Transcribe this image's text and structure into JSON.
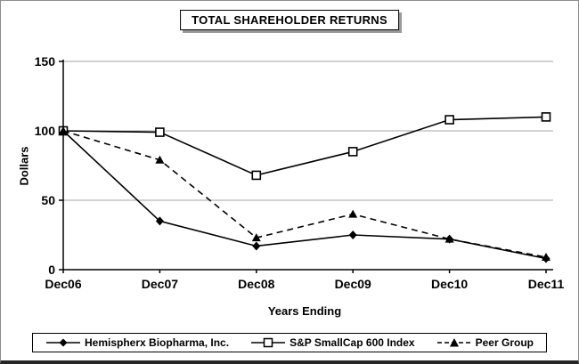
{
  "title": "TOTAL SHAREHOLDER RETURNS",
  "chart_data": {
    "type": "line",
    "categories": [
      "Dec06",
      "Dec07",
      "Dec08",
      "Dec09",
      "Dec10",
      "Dec11"
    ],
    "series": [
      {
        "name": "Hemispherx Biopharma, Inc.",
        "values": [
          100,
          35,
          17,
          25,
          22,
          8
        ],
        "marker": "diamond",
        "line": "solid"
      },
      {
        "name": "S&P SmallCap 600 Index",
        "values": [
          100,
          99,
          68,
          85,
          108,
          110
        ],
        "marker": "square-open",
        "line": "solid"
      },
      {
        "name": "Peer Group",
        "values": [
          100,
          79,
          23,
          40,
          22,
          9
        ],
        "marker": "triangle",
        "line": "dashed"
      }
    ],
    "xlabel": "Years Ending",
    "ylabel": "Dollars",
    "ylim": [
      0,
      150
    ],
    "yticks": [
      0,
      50,
      100,
      150
    ],
    "grid": true,
    "legend_position": "bottom",
    "colors": {
      "line": "#000000",
      "grid": "#a6a6a6",
      "background": "#ffffff"
    }
  }
}
